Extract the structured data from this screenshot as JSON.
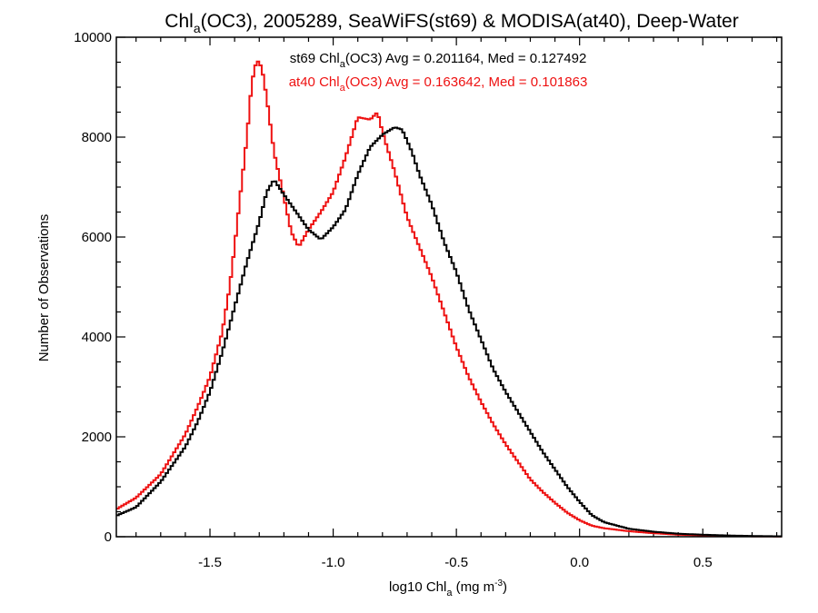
{
  "chart_data": {
    "type": "line",
    "title": {
      "prefix": "Chl",
      "sub": "a",
      "rest": "(OC3), 2005289, SeaWiFS(st69) & MODISA(at40), Deep-Water"
    },
    "xlabel": {
      "prefix": "log10 Chl",
      "sub": "a",
      "mid": " (mg m",
      "sup": "-3",
      "end": ")"
    },
    "ylabel": "Number of Observations",
    "xlim": [
      -1.88,
      0.82
    ],
    "ylim": [
      0,
      10000
    ],
    "xticks": [
      -1.5,
      -1.0,
      -0.5,
      0.0,
      0.5
    ],
    "xtick_labels": [
      "-1.5",
      "-1.0",
      "-0.5",
      "0.0",
      "0.5"
    ],
    "yticks": [
      0,
      2000,
      4000,
      6000,
      8000,
      10000
    ],
    "ytick_labels": [
      "0",
      "2000",
      "4000",
      "6000",
      "8000",
      "10000"
    ],
    "grid": false,
    "annotations": [
      {
        "series": "st69",
        "prefix": "st69 Chl",
        "sub": "a",
        "rest": "(OC3) Avg = 0.201164, Med = 0.127492",
        "color": "#000000"
      },
      {
        "series": "at40",
        "prefix": "at40 Chl",
        "sub": "a",
        "rest": "(OC3) Avg = 0.163642, Med = 0.101863",
        "color": "#ee1111"
      }
    ],
    "series": [
      {
        "name": "st69",
        "color": "#000000",
        "points": [
          [
            -1.88,
            420
          ],
          [
            -1.8,
            590
          ],
          [
            -1.7,
            1100
          ],
          [
            -1.6,
            1800
          ],
          [
            -1.55,
            2300
          ],
          [
            -1.5,
            2900
          ],
          [
            -1.45,
            3700
          ],
          [
            -1.4,
            4600
          ],
          [
            -1.35,
            5500
          ],
          [
            -1.3,
            6300
          ],
          [
            -1.27,
            6900
          ],
          [
            -1.24,
            7150
          ],
          [
            -1.2,
            6850
          ],
          [
            -1.15,
            6500
          ],
          [
            -1.1,
            6150
          ],
          [
            -1.05,
            5950
          ],
          [
            -1.0,
            6200
          ],
          [
            -0.95,
            6550
          ],
          [
            -0.9,
            7250
          ],
          [
            -0.85,
            7800
          ],
          [
            -0.8,
            8050
          ],
          [
            -0.75,
            8200
          ],
          [
            -0.72,
            8150
          ],
          [
            -0.68,
            7700
          ],
          [
            -0.65,
            7250
          ],
          [
            -0.6,
            6650
          ],
          [
            -0.55,
            5900
          ],
          [
            -0.5,
            5300
          ],
          [
            -0.45,
            4550
          ],
          [
            -0.4,
            3950
          ],
          [
            -0.35,
            3350
          ],
          [
            -0.3,
            2900
          ],
          [
            -0.25,
            2500
          ],
          [
            -0.2,
            2100
          ],
          [
            -0.15,
            1700
          ],
          [
            -0.1,
            1350
          ],
          [
            -0.05,
            1000
          ],
          [
            0.0,
            700
          ],
          [
            0.05,
            430
          ],
          [
            0.1,
            290
          ],
          [
            0.2,
            160
          ],
          [
            0.3,
            100
          ],
          [
            0.4,
            60
          ],
          [
            0.5,
            40
          ],
          [
            0.6,
            25
          ],
          [
            0.7,
            15
          ],
          [
            0.82,
            8
          ]
        ]
      },
      {
        "name": "at40",
        "color": "#ee1111",
        "points": [
          [
            -1.88,
            550
          ],
          [
            -1.8,
            780
          ],
          [
            -1.7,
            1250
          ],
          [
            -1.6,
            2050
          ],
          [
            -1.55,
            2600
          ],
          [
            -1.5,
            3200
          ],
          [
            -1.45,
            4100
          ],
          [
            -1.42,
            5000
          ],
          [
            -1.4,
            5800
          ],
          [
            -1.38,
            6700
          ],
          [
            -1.35,
            8000
          ],
          [
            -1.33,
            9100
          ],
          [
            -1.31,
            9550
          ],
          [
            -1.29,
            9400
          ],
          [
            -1.27,
            8800
          ],
          [
            -1.24,
            7700
          ],
          [
            -1.2,
            6800
          ],
          [
            -1.17,
            6100
          ],
          [
            -1.14,
            5800
          ],
          [
            -1.1,
            6150
          ],
          [
            -1.05,
            6500
          ],
          [
            -1.0,
            6900
          ],
          [
            -0.95,
            7600
          ],
          [
            -0.9,
            8400
          ],
          [
            -0.85,
            8350
          ],
          [
            -0.82,
            8500
          ],
          [
            -0.8,
            8100
          ],
          [
            -0.75,
            7300
          ],
          [
            -0.7,
            6400
          ],
          [
            -0.65,
            5800
          ],
          [
            -0.6,
            5200
          ],
          [
            -0.55,
            4500
          ],
          [
            -0.5,
            3800
          ],
          [
            -0.45,
            3200
          ],
          [
            -0.4,
            2700
          ],
          [
            -0.35,
            2250
          ],
          [
            -0.3,
            1850
          ],
          [
            -0.25,
            1500
          ],
          [
            -0.2,
            1150
          ],
          [
            -0.15,
            900
          ],
          [
            -0.1,
            680
          ],
          [
            -0.05,
            480
          ],
          [
            0.0,
            330
          ],
          [
            0.05,
            220
          ],
          [
            0.1,
            170
          ],
          [
            0.2,
            110
          ],
          [
            0.3,
            70
          ],
          [
            0.4,
            40
          ],
          [
            0.5,
            25
          ],
          [
            0.6,
            15
          ],
          [
            0.7,
            8
          ],
          [
            0.82,
            5
          ]
        ]
      }
    ]
  }
}
